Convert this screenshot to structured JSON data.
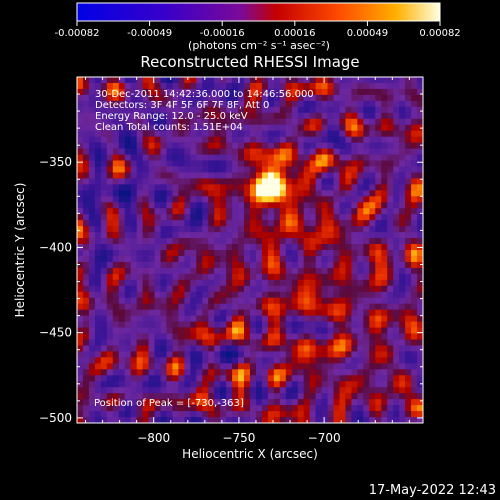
{
  "colorbar": {
    "ticks": [
      "-0.00082",
      "-0.00049",
      "-0.00016",
      "0.00016",
      "0.00049",
      "0.00082"
    ],
    "units_label": "(photons cm⁻² s⁻¹ asec⁻²)",
    "range": [
      -0.00082,
      0.00082
    ]
  },
  "chart_data": {
    "type": "heatmap",
    "title": "Reconstructed RHESSI Image",
    "xlabel": "Heliocentric X (arcsec)",
    "ylabel": "Heliocentric Y (arcsec)",
    "xlim": [
      -845,
      -642
    ],
    "ylim": [
      -503,
      -300
    ],
    "x_ticks": [
      -800,
      -750,
      -700
    ],
    "y_ticks": [
      -350,
      -400,
      -450,
      -500
    ],
    "x_tick_labels": [
      "−800",
      "−750",
      "−700"
    ],
    "y_tick_labels": [
      "−350",
      "−400",
      "−450",
      "−500"
    ],
    "info_lines": [
      "30-Dec-2011 14:42:36.000 to 14:46:56.000",
      "Detectors: 3F 4F 5F 6F 7F 8F, Att 0",
      "Energy Range: 12.0 - 25.0 keV",
      "Clean     Total counts: 1.51E+04"
    ],
    "peak_label": "Position of Peak = [-730,-363]",
    "peak": {
      "x": -730,
      "y": -363
    },
    "peak_value": 0.00082,
    "colormap": "rhessi_thermal"
  },
  "footer": {
    "date": "17-May-2022 12:43"
  }
}
